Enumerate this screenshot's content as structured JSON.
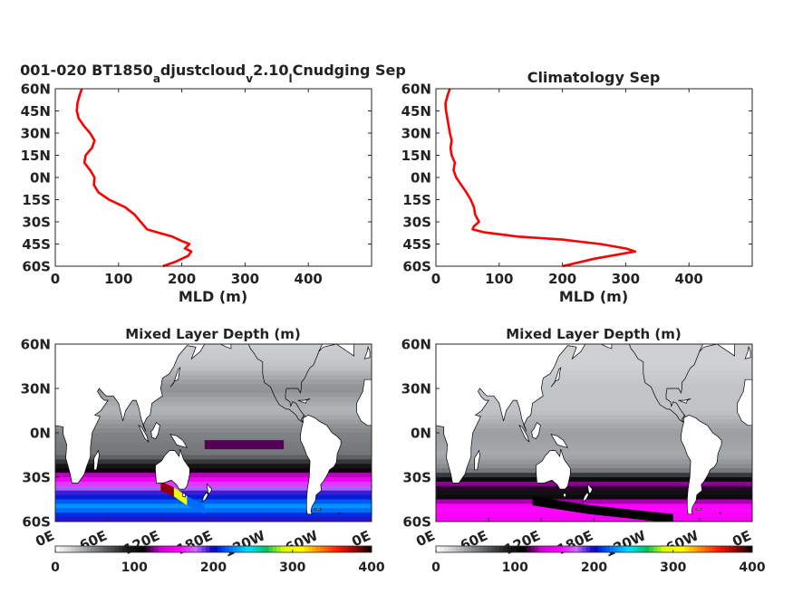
{
  "colors": {
    "profile_line": "#ff0000",
    "axis": "#262626",
    "land": "#ffffff",
    "colormap": [
      "#ffffff",
      "#c8cbcd",
      "#8f9295",
      "#55585b",
      "#1e1e20",
      "#000000",
      "#d000d8",
      "#ff00ff",
      "#c76bff",
      "#0000c8",
      "#0078ff",
      "#00e0ff",
      "#00c060",
      "#e0ff00",
      "#ffff00",
      "#ff8c00",
      "#ff2000",
      "#a00000",
      "#000000"
    ]
  },
  "chart_data": [
    {
      "id": "profile_model",
      "type": "line",
      "title_parts": [
        "001-020 BT1850",
        "a",
        "djustcloud",
        "v",
        "2.10",
        "l",
        "Cnudging Sep"
      ],
      "xlabel": "MLD (m)",
      "ylabel": "",
      "xlim": [
        0,
        500
      ],
      "ylim": [
        -60,
        60
      ],
      "xticks": [
        0,
        100,
        200,
        300,
        400
      ],
      "xticklabels": [
        "0",
        "100",
        "200",
        "300",
        "400"
      ],
      "yticks": [
        60,
        45,
        30,
        15,
        0,
        -15,
        -30,
        -45,
        -60
      ],
      "yticklabels": [
        "60N",
        "45N",
        "30N",
        "15N",
        "0N",
        "15S",
        "30S",
        "45S",
        "60S"
      ],
      "grid": false,
      "series": [
        {
          "x": [
            42,
            38,
            35,
            34,
            37,
            45,
            55,
            62,
            58,
            48,
            46,
            55,
            62,
            61,
            68,
            85,
            110,
            125,
            135,
            145,
            160,
            185,
            200,
            212,
            205,
            215,
            210,
            190,
            170
          ],
          "y": [
            60,
            55,
            50,
            45,
            40,
            35,
            30,
            25,
            20,
            15,
            10,
            5,
            0,
            -5,
            -10,
            -15,
            -20,
            -25,
            -30,
            -35,
            -37,
            -40,
            -43,
            -45,
            -48,
            -50,
            -53,
            -57,
            -60
          ]
        }
      ]
    },
    {
      "id": "profile_clim",
      "type": "line",
      "title": "Climatology Sep",
      "xlabel": "MLD (m)",
      "ylabel": "",
      "xlim": [
        0,
        500
      ],
      "ylim": [
        -60,
        60
      ],
      "xticks": [
        0,
        100,
        200,
        300,
        400
      ],
      "xticklabels": [
        "0",
        "100",
        "200",
        "300",
        "400"
      ],
      "yticks": [
        60,
        45,
        30,
        15,
        0,
        -15,
        -30,
        -45,
        -60
      ],
      "yticklabels": [
        "60N",
        "45N",
        "30N",
        "15N",
        "0N",
        "15S",
        "30S",
        "45S",
        "60S"
      ],
      "grid": false,
      "series": [
        {
          "x": [
            22,
            18,
            15,
            16,
            18,
            20,
            22,
            25,
            23,
            25,
            30,
            28,
            32,
            40,
            48,
            55,
            60,
            62,
            68,
            60,
            58,
            75,
            130,
            200,
            260,
            300,
            315,
            250,
            200
          ],
          "y": [
            60,
            55,
            50,
            45,
            40,
            35,
            30,
            25,
            20,
            15,
            10,
            5,
            0,
            -5,
            -10,
            -15,
            -20,
            -25,
            -30,
            -33,
            -35,
            -37,
            -40,
            -42,
            -45,
            -48,
            -50,
            -55,
            -60
          ]
        }
      ]
    },
    {
      "id": "map_model",
      "type": "heatmap",
      "title": "Mixed Layer Depth (m)",
      "xlim": [
        0,
        360
      ],
      "ylim": [
        -60,
        60
      ],
      "xticklabels": [
        "0E",
        "60E",
        "120E",
        "180E",
        "120W",
        "60W",
        "0E"
      ],
      "yticks": [
        60,
        30,
        0,
        -30,
        -60
      ],
      "yticklabels": [
        "60N",
        "30N",
        "0N",
        "30S",
        "60S"
      ],
      "colorbar": {
        "range": [
          0,
          400
        ],
        "ticks": [
          0,
          100,
          200,
          300,
          400
        ],
        "ticklabels": [
          "0",
          "100",
          "200",
          "300",
          "400"
        ],
        "orientation": "horizontal"
      },
      "zonal_mld": [
        [
          60,
          20
        ],
        [
          45,
          25
        ],
        [
          30,
          45
        ],
        [
          15,
          30
        ],
        [
          0,
          50
        ],
        [
          -15,
          55
        ],
        [
          -25,
          110
        ],
        [
          -35,
          170
        ],
        [
          -42,
          200
        ],
        [
          -50,
          230
        ],
        [
          -60,
          190
        ]
      ],
      "features": [
        {
          "lon": [
            120,
            135
          ],
          "lat": [
            -36,
            -40
          ],
          "value": 380
        },
        {
          "lon": [
            135,
            150
          ],
          "lat": [
            -40,
            -46
          ],
          "value": 300
        },
        {
          "lon": [
            150,
            170
          ],
          "lat": [
            -46,
            -52
          ],
          "value": 220
        },
        {
          "lon": [
            170,
            260
          ],
          "lat": [
            -8,
            -8
          ],
          "value": 120
        }
      ]
    },
    {
      "id": "map_clim",
      "type": "heatmap",
      "title": "Mixed Layer Depth (m)",
      "xlim": [
        0,
        360
      ],
      "ylim": [
        -60,
        60
      ],
      "xticklabels": [
        "0E",
        "60E",
        "120E",
        "180E",
        "120W",
        "60W",
        "0E"
      ],
      "yticks": [
        60,
        30,
        0,
        -30,
        -60
      ],
      "yticklabels": [
        "60N",
        "30N",
        "0N",
        "30S",
        "60S"
      ],
      "colorbar": {
        "range": [
          0,
          400
        ],
        "ticks": [
          0,
          100,
          200,
          300,
          400
        ],
        "ticklabels": [
          "0",
          "100",
          "200",
          "300",
          "400"
        ],
        "orientation": "horizontal"
      },
      "zonal_mld": [
        [
          60,
          20
        ],
        [
          45,
          20
        ],
        [
          30,
          25
        ],
        [
          15,
          25
        ],
        [
          0,
          40
        ],
        [
          -15,
          35
        ],
        [
          -25,
          50
        ],
        [
          -35,
          130
        ],
        [
          -42,
          90
        ],
        [
          -50,
          160
        ],
        [
          -60,
          150
        ]
      ],
      "features": [
        {
          "lon": [
            110,
            175
          ],
          "lat": [
            -46,
            -52
          ],
          "value": 400
        },
        {
          "lon": [
            175,
            270
          ],
          "lat": [
            -52,
            -58
          ],
          "value": 420
        }
      ]
    }
  ]
}
